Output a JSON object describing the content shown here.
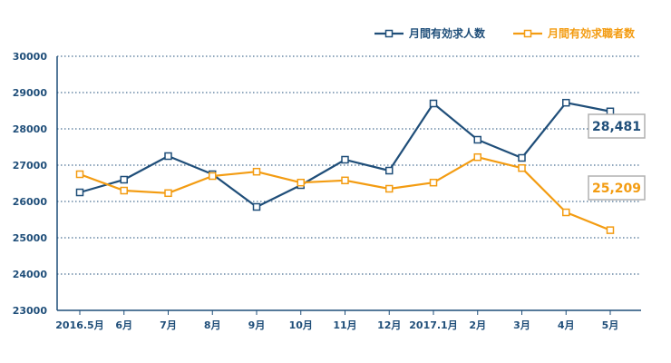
{
  "chart_data": {
    "type": "line",
    "categories": [
      "2016.5月",
      "6月",
      "7月",
      "8月",
      "9月",
      "10月",
      "11月",
      "12月",
      "2017.1月",
      "2月",
      "3月",
      "4月",
      "5月"
    ],
    "ylim": [
      23000,
      30000
    ],
    "yticks": [
      23000,
      24000,
      25000,
      26000,
      27000,
      28000,
      29000,
      30000
    ],
    "grid": true,
    "legend_position": "top-right",
    "series": [
      {
        "name": "月間有効求人数",
        "color": "#1f4e79",
        "values": [
          26250,
          26600,
          27250,
          26750,
          25850,
          26450,
          27150,
          26850,
          28700,
          27700,
          27200,
          28720,
          28481
        ],
        "callout": "28,481"
      },
      {
        "name": "月間有効求職者数",
        "color": "#f39c12",
        "values": [
          26750,
          26300,
          26230,
          26700,
          26820,
          26520,
          26580,
          26350,
          26520,
          27220,
          26920,
          25700,
          25209
        ],
        "callout": "25,209"
      }
    ]
  },
  "style": {
    "axis_color": "#1f4e79",
    "grid_color": "#1f4e79",
    "callout_border": "#b0b0b0"
  }
}
